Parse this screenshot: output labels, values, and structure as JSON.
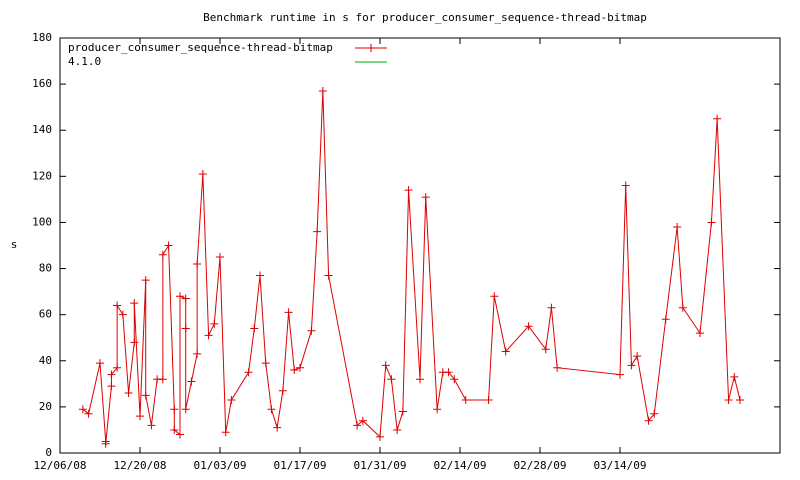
{
  "chart_data": {
    "type": "line",
    "title": "Benchmark runtime in s for producer_consumer_sequence-thread-bitmap",
    "y_label": "s",
    "xlim": [
      "2008-12-06",
      "2009-04-11"
    ],
    "xticks": [
      {
        "value": "2008-12-06",
        "label": "12/06/08"
      },
      {
        "value": "2008-12-20",
        "label": "12/20/08"
      },
      {
        "value": "2009-01-03",
        "label": "01/03/09"
      },
      {
        "value": "2009-01-17",
        "label": "01/17/09"
      },
      {
        "value": "2009-01-31",
        "label": "01/31/09"
      },
      {
        "value": "2009-02-14",
        "label": "02/14/09"
      },
      {
        "value": "2009-02-28",
        "label": "02/28/09"
      },
      {
        "value": "2009-03-14",
        "label": "03/14/09"
      }
    ],
    "ylim": [
      0,
      180
    ],
    "yticks": [
      0,
      20,
      40,
      60,
      80,
      100,
      120,
      140,
      160,
      180
    ],
    "legend": "top-left",
    "series": [
      {
        "name": "producer_consumer_sequence-thread-bitmap",
        "color": "#dd0000",
        "x": [
          "2008-12-10",
          "2008-12-11",
          "2008-12-13",
          "2008-12-14",
          "2008-12-14",
          "2008-12-15",
          "2008-12-15",
          "2008-12-16",
          "2008-12-16",
          "2008-12-17",
          "2008-12-18",
          "2008-12-19",
          "2008-12-19",
          "2008-12-20",
          "2008-12-21",
          "2008-12-21",
          "2008-12-22",
          "2008-12-23",
          "2008-12-24",
          "2008-12-24",
          "2008-12-25",
          "2008-12-26",
          "2008-12-26",
          "2008-12-27",
          "2008-12-27",
          "2008-12-28",
          "2008-12-28",
          "2008-12-28",
          "2008-12-29",
          "2008-12-30",
          "2008-12-30",
          "2008-12-31",
          "2009-01-01",
          "2009-01-02",
          "2009-01-03",
          "2009-01-04",
          "2009-01-05",
          "2009-01-08",
          "2009-01-09",
          "2009-01-10",
          "2009-01-11",
          "2009-01-12",
          "2009-01-13",
          "2009-01-14",
          "2009-01-15",
          "2009-01-16",
          "2009-01-17",
          "2009-01-19",
          "2009-01-20",
          "2009-01-21",
          "2009-01-22",
          "2009-01-27",
          "2009-01-28",
          "2009-01-31",
          "2009-02-01",
          "2009-02-02",
          "2009-02-03",
          "2009-02-04",
          "2009-02-05",
          "2009-02-07",
          "2009-02-08",
          "2009-02-10",
          "2009-02-11",
          "2009-02-12",
          "2009-02-13",
          "2009-02-15",
          "2009-02-19",
          "2009-02-20",
          "2009-02-22",
          "2009-02-26",
          "2009-03-01",
          "2009-03-02",
          "2009-03-03",
          "2009-03-14",
          "2009-03-15",
          "2009-03-16",
          "2009-03-17",
          "2009-03-19",
          "2009-03-20",
          "2009-03-22",
          "2009-03-24",
          "2009-03-25",
          "2009-03-28",
          "2009-03-30",
          "2009-03-31",
          "2009-04-02",
          "2009-04-03",
          "2009-04-04"
        ],
        "values": [
          19,
          17,
          39,
          5,
          4,
          29,
          34,
          37,
          64,
          60,
          26,
          48,
          65,
          16,
          75,
          25,
          12,
          32,
          32,
          86,
          90,
          19,
          10,
          8,
          68,
          67,
          54,
          19,
          31,
          43,
          82,
          121,
          51,
          56,
          85,
          9,
          23,
          35,
          54,
          77,
          39,
          19,
          11,
          27,
          61,
          36,
          37,
          53,
          96,
          157,
          77,
          12,
          14,
          7,
          38,
          32,
          10,
          18,
          114,
          32,
          111,
          19,
          35,
          35,
          32,
          23,
          23,
          68,
          44,
          55,
          45,
          63,
          37,
          34,
          116,
          38,
          42,
          14,
          17,
          58,
          98,
          63,
          52,
          100,
          145,
          23,
          33,
          23
        ]
      },
      {
        "name": "4.1.0",
        "color": "#00aa00",
        "x": [],
        "values": []
      }
    ]
  }
}
